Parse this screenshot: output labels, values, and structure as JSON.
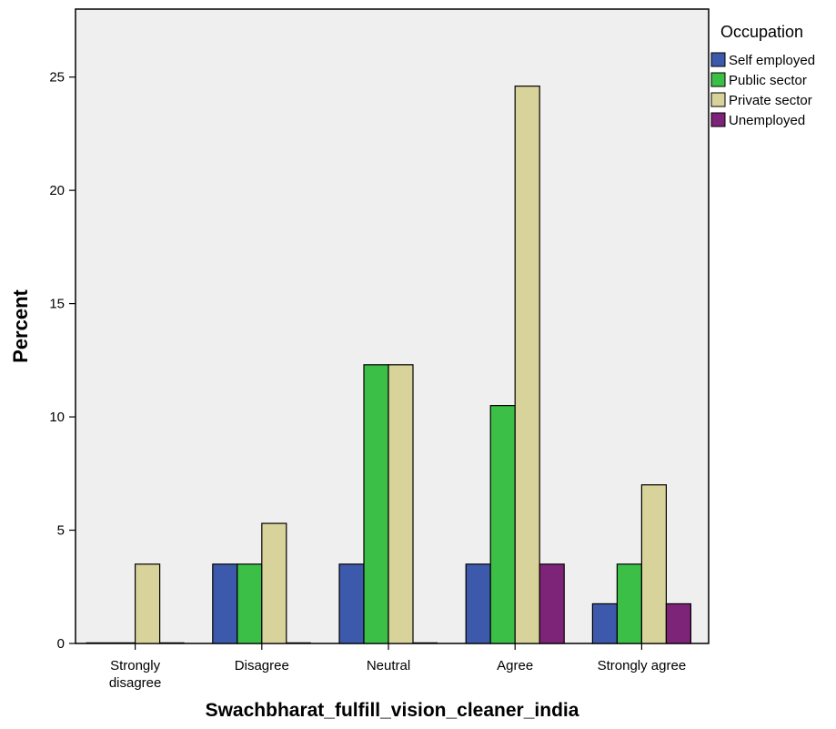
{
  "chart_data": {
    "type": "bar",
    "title": "",
    "xlabel": "Swachbharat_fulfill_vision_cleaner_india",
    "ylabel": "Percent",
    "ylim": [
      0,
      28
    ],
    "yticks": [
      0,
      5,
      10,
      15,
      20,
      25
    ],
    "categories": [
      [
        "Strongly",
        "disagree"
      ],
      [
        "Disagree"
      ],
      [
        "Neutral"
      ],
      [
        "Agree"
      ],
      [
        "Strongly agree"
      ]
    ],
    "grid": false,
    "legend": {
      "title": "Occupation",
      "position": "outside-top-right"
    },
    "series": [
      {
        "name": "Self employed",
        "color": "#3D59AB",
        "values": [
          0,
          3.5,
          3.5,
          3.5,
          1.75
        ]
      },
      {
        "name": "Public sector",
        "color": "#3CBF46",
        "values": [
          0,
          3.5,
          12.3,
          10.5,
          3.5
        ]
      },
      {
        "name": "Private sector",
        "color": "#D8D39A",
        "values": [
          3.5,
          5.3,
          12.3,
          24.6,
          7.0
        ]
      },
      {
        "name": "Unemployed",
        "color": "#7E2478",
        "values": [
          0,
          0,
          0,
          3.5,
          1.75
        ]
      }
    ],
    "colors": {
      "plot_background": "#EFEFEF",
      "axis": "#000000"
    }
  }
}
